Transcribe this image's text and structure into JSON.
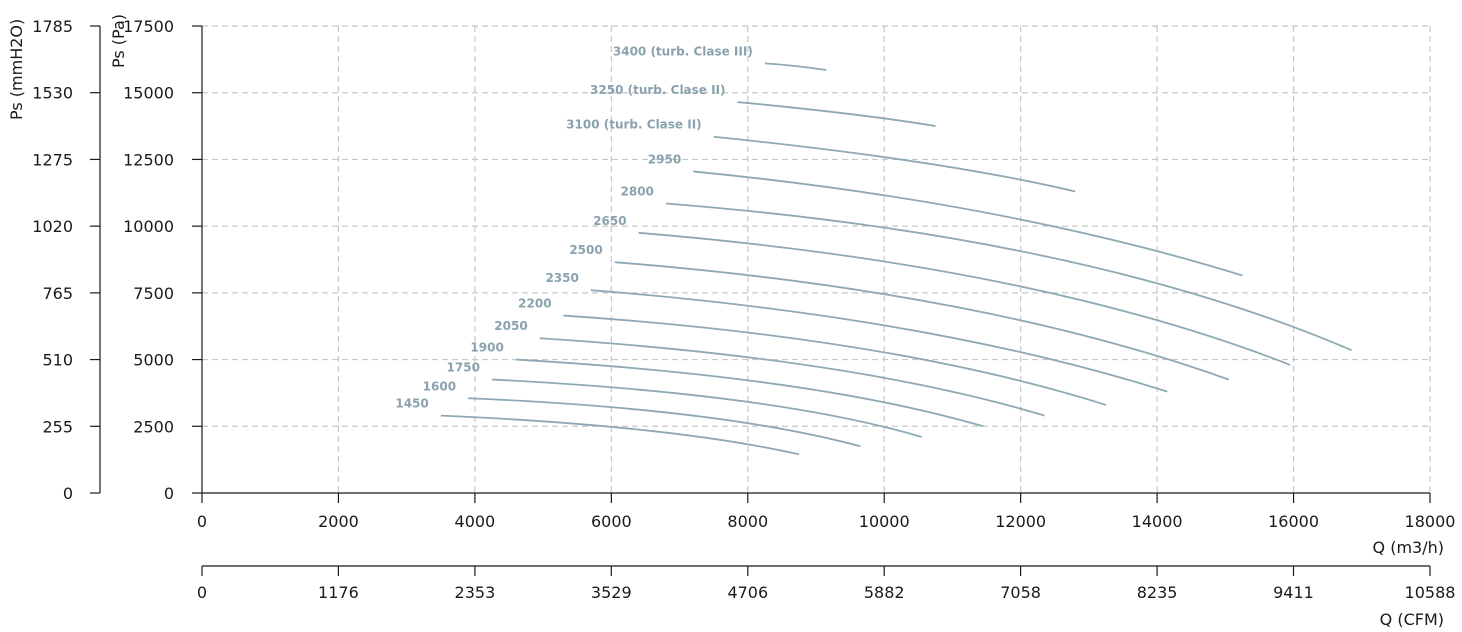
{
  "chart_data": {
    "type": "line",
    "title": "",
    "grid": true,
    "y_axes": [
      {
        "label": "Ps (Pa)",
        "ticks": [
          0,
          2500,
          5000,
          7500,
          10000,
          12500,
          15000,
          17500
        ],
        "range": [
          0,
          17500
        ]
      },
      {
        "label": "Ps (mmH2O)",
        "ticks": [
          0,
          255,
          510,
          765,
          1020,
          1275,
          1530,
          1785
        ],
        "range": [
          0,
          1785
        ]
      }
    ],
    "x_axes": [
      {
        "label": "Q (m3/h)",
        "ticks": [
          0,
          2000,
          4000,
          6000,
          8000,
          10000,
          12000,
          14000,
          16000,
          18000
        ],
        "range": [
          0,
          18000
        ]
      },
      {
        "label": "Q (CFM)",
        "ticks": [
          0,
          1176,
          2353,
          3529,
          4706,
          5882,
          7058,
          8235,
          9411,
          10588
        ],
        "range": [
          0,
          10588
        ]
      }
    ],
    "series": [
      {
        "name": "1450",
        "x": [
          3500,
          6500,
          8750
        ],
        "y": [
          2900,
          2350,
          1450
        ]
      },
      {
        "name": "1600",
        "x": [
          3900,
          7200,
          9650
        ],
        "y": [
          3550,
          2900,
          1750
        ]
      },
      {
        "name": "1750",
        "x": [
          4250,
          7900,
          10550
        ],
        "y": [
          4250,
          3450,
          2100
        ]
      },
      {
        "name": "1900",
        "x": [
          4600,
          8500,
          11450
        ],
        "y": [
          5000,
          4050,
          2500
        ]
      },
      {
        "name": "2050",
        "x": [
          4950,
          9100,
          12350
        ],
        "y": [
          5800,
          4700,
          2900
        ]
      },
      {
        "name": "2200",
        "x": [
          5300,
          9700,
          13250
        ],
        "y": [
          6650,
          5400,
          3300
        ]
      },
      {
        "name": "2350",
        "x": [
          5700,
          10300,
          14150
        ],
        "y": [
          7600,
          6150,
          3800
        ]
      },
      {
        "name": "2500",
        "x": [
          6050,
          11000,
          15050
        ],
        "y": [
          8650,
          7000,
          4250
        ]
      },
      {
        "name": "2650",
        "x": [
          6400,
          11700,
          15950
        ],
        "y": [
          9750,
          7900,
          4800
        ]
      },
      {
        "name": "2800",
        "x": [
          6800,
          12400,
          16850
        ],
        "y": [
          10850,
          8850,
          5350
        ]
      },
      {
        "name": "2950",
        "x": [
          7200,
          11500,
          15250
        ],
        "y": [
          12050,
          10500,
          8150
        ]
      },
      {
        "name": "3100 (turb. Clase II)",
        "x": [
          7500,
          10500,
          12800
        ],
        "y": [
          13350,
          12400,
          11300
        ]
      },
      {
        "name": "3250 (turb. Clase II)",
        "x": [
          7850,
          9500,
          10750
        ],
        "y": [
          14650,
          14200,
          13750
        ]
      },
      {
        "name": "3400 (turb. Clase III)",
        "x": [
          8250,
          8700,
          9150
        ],
        "y": [
          16100,
          16000,
          15850
        ]
      }
    ]
  }
}
